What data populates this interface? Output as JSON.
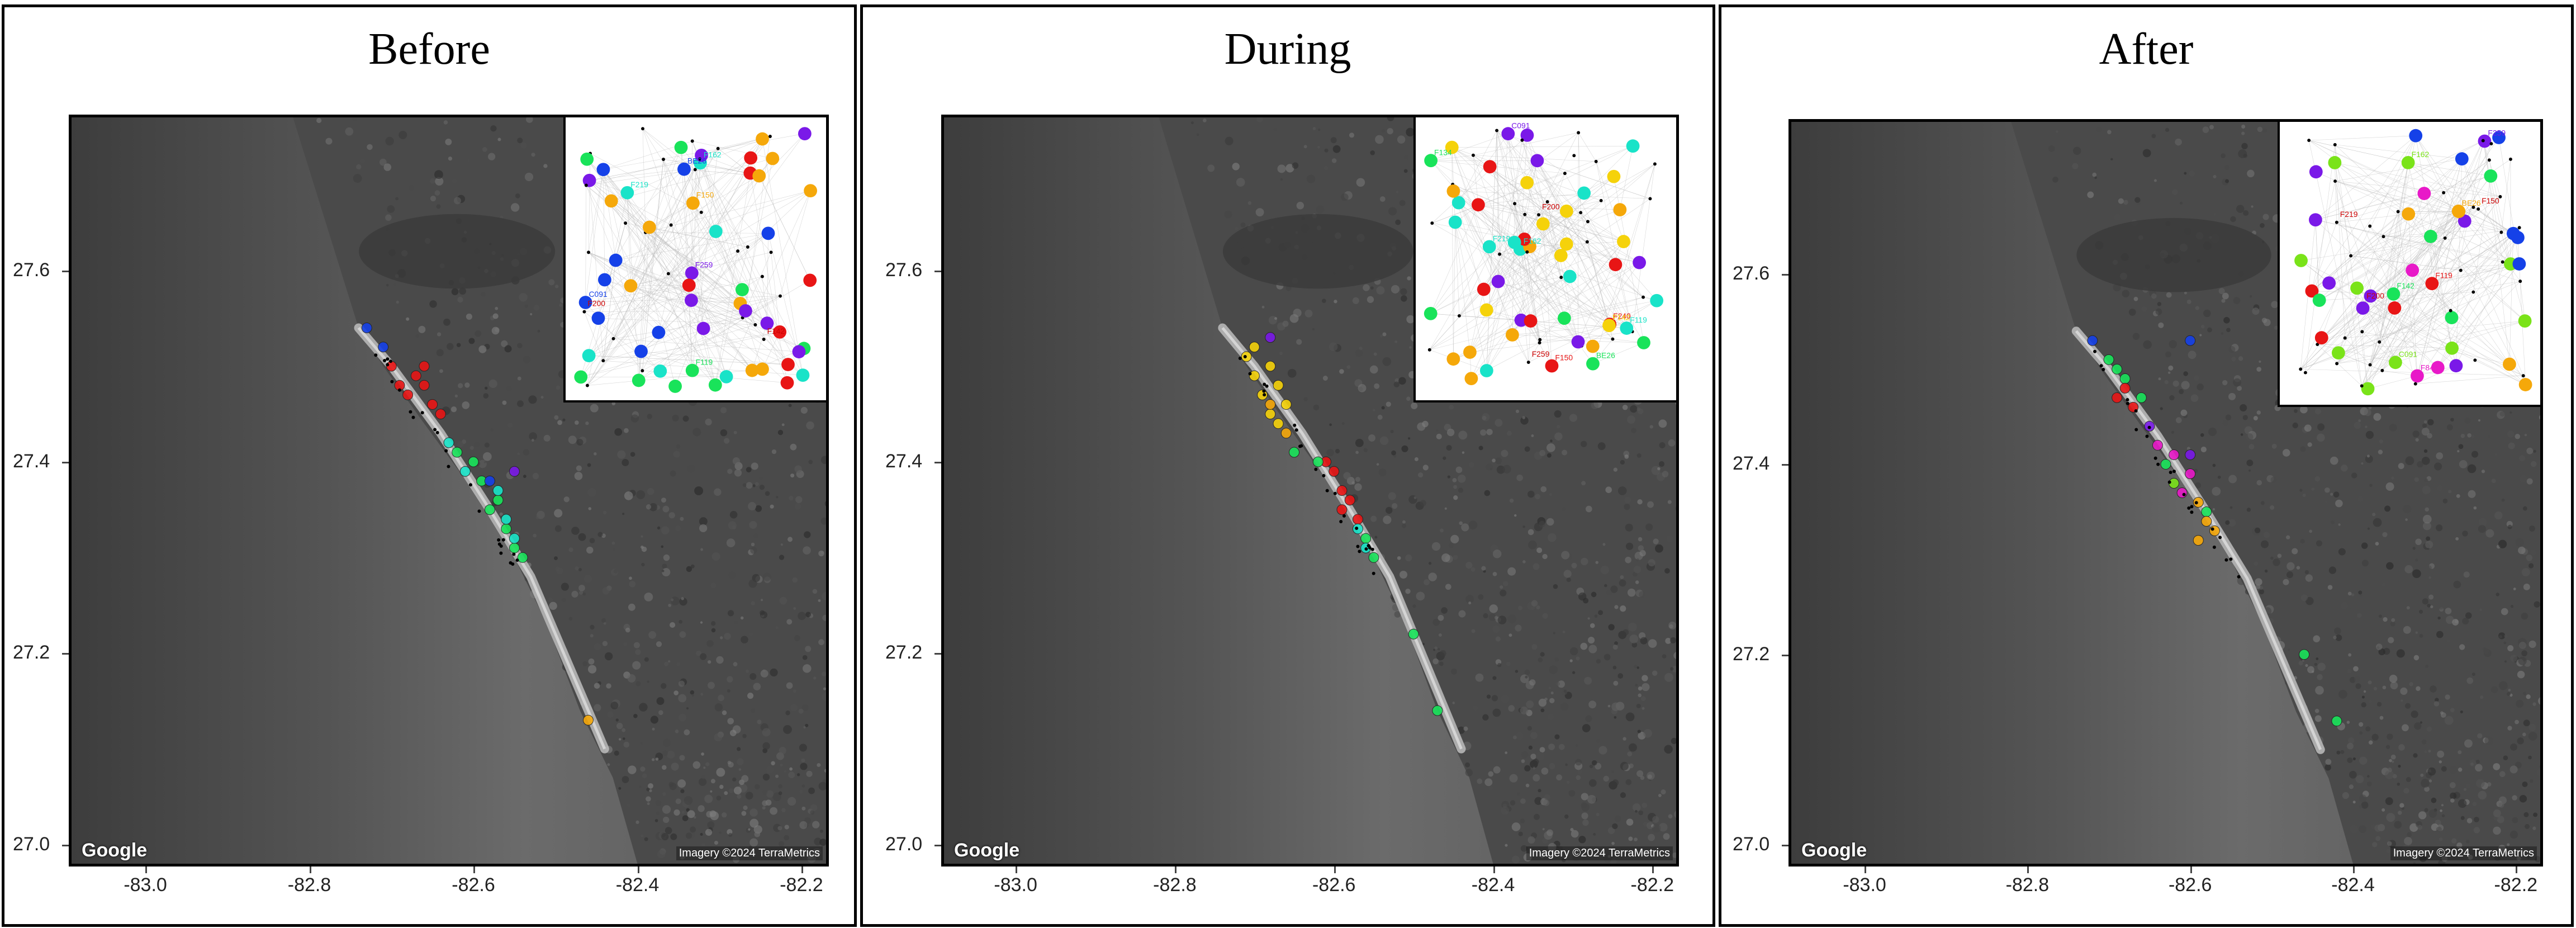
{
  "panels": [
    {
      "title": "Before"
    },
    {
      "title": "During"
    },
    {
      "title": "After"
    }
  ],
  "map": {
    "google_label": "Google",
    "imagery_credit": "Imagery ©2024 TerraMetrics"
  },
  "axes": {
    "x_ticks": [
      "-83.0",
      "-82.8",
      "-82.6",
      "-82.4",
      "-82.2"
    ],
    "y_ticks": [
      "27.0",
      "27.2",
      "27.4",
      "27.6"
    ],
    "x_values": [
      -83.0,
      -82.8,
      -82.6,
      -82.4,
      -82.2
    ],
    "y_values": [
      27.0,
      27.2,
      27.4,
      27.6
    ],
    "xlim": [
      -83.09,
      -82.17
    ],
    "ylim": [
      26.98,
      27.76
    ]
  },
  "colors": {
    "red": "#e81515",
    "green": "#19e35a",
    "cyan": "#19e3c8",
    "blue": "#1541e8",
    "purple": "#7a19e8",
    "yellow": "#f5d20a",
    "orange": "#f5a80a",
    "magenta": "#e819c8",
    "lime": "#7ae319",
    "teal": "#19c8e3"
  },
  "chart_data": [
    {
      "type": "scatter",
      "title": "Before",
      "series": [
        {
          "color": "red",
          "points": [
            [
              -82.67,
              27.49
            ],
            [
              -82.66,
              27.48
            ],
            [
              -82.68,
              27.47
            ],
            [
              -82.65,
              27.46
            ],
            [
              -82.7,
              27.5
            ],
            [
              -82.64,
              27.45
            ],
            [
              -82.66,
              27.5
            ],
            [
              -82.69,
              27.48
            ]
          ]
        },
        {
          "color": "green",
          "points": [
            [
              -82.59,
              27.38
            ],
            [
              -82.57,
              27.36
            ],
            [
              -82.56,
              27.33
            ],
            [
              -82.55,
              27.31
            ],
            [
              -82.54,
              27.3
            ],
            [
              -82.58,
              27.35
            ],
            [
              -82.6,
              27.4
            ],
            [
              -82.62,
              27.41
            ]
          ]
        },
        {
          "color": "cyan",
          "points": [
            [
              -82.57,
              27.37
            ],
            [
              -82.56,
              27.34
            ],
            [
              -82.55,
              27.32
            ],
            [
              -82.63,
              27.42
            ],
            [
              -82.61,
              27.39
            ]
          ]
        },
        {
          "color": "blue",
          "points": [
            [
              -82.73,
              27.54
            ],
            [
              -82.71,
              27.52
            ],
            [
              -82.58,
              27.38
            ]
          ]
        },
        {
          "color": "purple",
          "points": [
            [
              -82.55,
              27.39
            ]
          ]
        },
        {
          "color": "orange",
          "points": [
            [
              -82.46,
              27.13
            ]
          ]
        }
      ],
      "inset_labels": [
        "F219",
        "F259",
        "F142",
        "F162",
        "F150",
        "F119",
        "C091",
        "BE26",
        "F200"
      ]
    },
    {
      "type": "scatter",
      "title": "During",
      "series": [
        {
          "color": "yellow",
          "points": [
            [
              -82.71,
              27.51
            ],
            [
              -82.7,
              27.49
            ],
            [
              -82.69,
              27.47
            ],
            [
              -82.68,
              27.45
            ],
            [
              -82.67,
              27.44
            ],
            [
              -82.66,
              27.46
            ],
            [
              -82.7,
              27.52
            ],
            [
              -82.68,
              27.5
            ],
            [
              -82.67,
              27.48
            ]
          ]
        },
        {
          "color": "orange",
          "points": [
            [
              -82.66,
              27.43
            ],
            [
              -82.68,
              27.46
            ]
          ]
        },
        {
          "color": "red",
          "points": [
            [
              -82.6,
              27.39
            ],
            [
              -82.59,
              27.37
            ],
            [
              -82.58,
              27.36
            ],
            [
              -82.57,
              27.34
            ],
            [
              -82.59,
              27.35
            ],
            [
              -82.61,
              27.4
            ]
          ]
        },
        {
          "color": "green",
          "points": [
            [
              -82.65,
              27.41
            ],
            [
              -82.62,
              27.4
            ],
            [
              -82.56,
              27.32
            ],
            [
              -82.55,
              27.3
            ],
            [
              -82.5,
              27.22
            ],
            [
              -82.47,
              27.14
            ]
          ]
        },
        {
          "color": "cyan",
          "points": [
            [
              -82.57,
              27.33
            ],
            [
              -82.56,
              27.31
            ]
          ]
        },
        {
          "color": "purple",
          "points": [
            [
              -82.68,
              27.53
            ]
          ]
        }
      ],
      "inset_labels": [
        "F240",
        "F219",
        "F259",
        "F134",
        "F142",
        "F162",
        "F150",
        "F119",
        "C091",
        "BE26",
        "F200"
      ]
    },
    {
      "type": "scatter",
      "title": "After",
      "series": [
        {
          "color": "green",
          "points": [
            [
              -82.7,
              27.51
            ],
            [
              -82.68,
              27.49
            ],
            [
              -82.66,
              27.47
            ],
            [
              -82.69,
              27.5
            ],
            [
              -82.63,
              27.4
            ],
            [
              -82.58,
              27.35
            ],
            [
              -82.46,
              27.2
            ],
            [
              -82.42,
              27.13
            ]
          ]
        },
        {
          "color": "red",
          "points": [
            [
              -82.68,
              27.48
            ],
            [
              -82.67,
              27.46
            ],
            [
              -82.69,
              27.47
            ]
          ]
        },
        {
          "color": "magenta",
          "points": [
            [
              -82.64,
              27.42
            ],
            [
              -82.62,
              27.41
            ],
            [
              -82.6,
              27.39
            ],
            [
              -82.61,
              27.37
            ]
          ]
        },
        {
          "color": "purple",
          "points": [
            [
              -82.65,
              27.44
            ],
            [
              -82.6,
              27.41
            ]
          ]
        },
        {
          "color": "orange",
          "points": [
            [
              -82.59,
              27.36
            ],
            [
              -82.58,
              27.34
            ],
            [
              -82.57,
              27.33
            ],
            [
              -82.59,
              27.32
            ]
          ]
        },
        {
          "color": "blue",
          "points": [
            [
              -82.72,
              27.53
            ],
            [
              -82.6,
              27.53
            ]
          ]
        },
        {
          "color": "lime",
          "points": [
            [
              -82.62,
              27.38
            ]
          ]
        }
      ],
      "inset_labels": [
        "F219",
        "F259",
        "F142",
        "F162",
        "F150",
        "F119",
        "C091",
        "BE26",
        "F200",
        "F843"
      ]
    }
  ]
}
